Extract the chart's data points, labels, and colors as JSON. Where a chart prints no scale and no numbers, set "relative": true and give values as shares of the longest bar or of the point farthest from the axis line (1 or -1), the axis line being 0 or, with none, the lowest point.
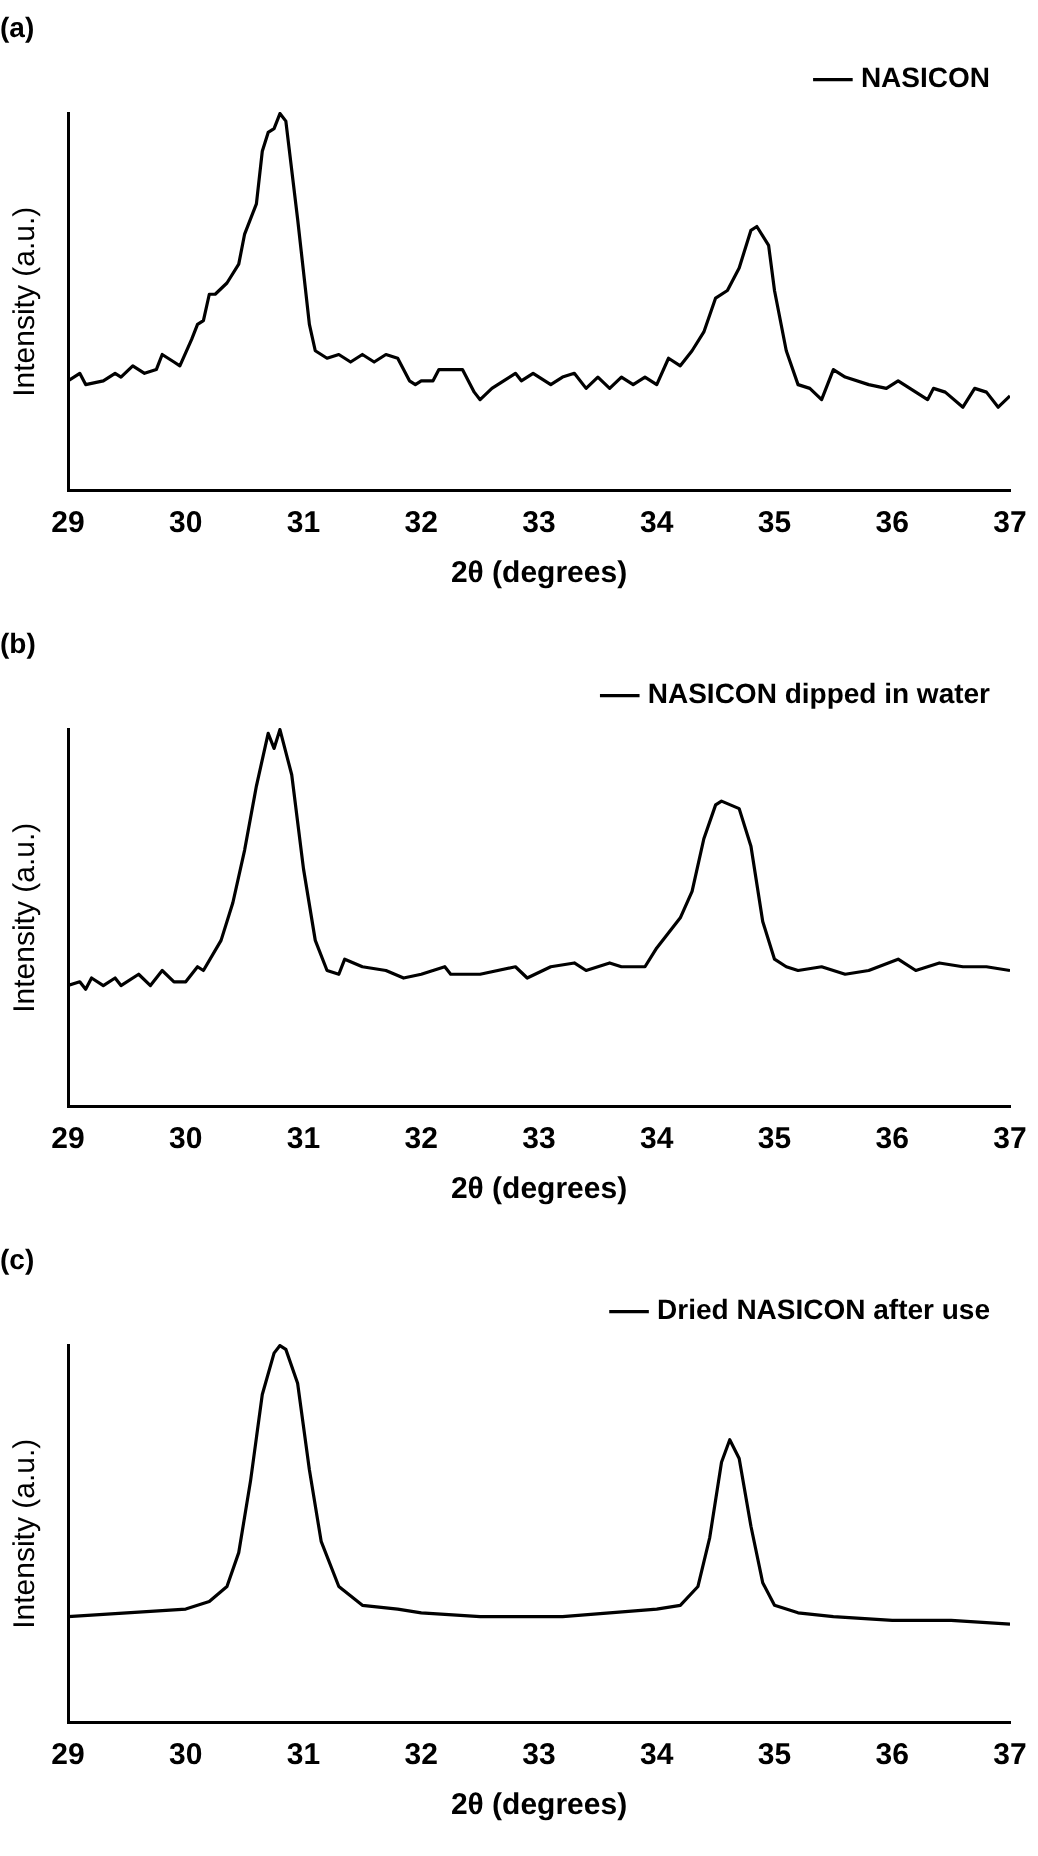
{
  "chart_data": [
    {
      "type": "line",
      "title": "(a)",
      "xlabel": "2θ (degrees)",
      "ylabel": "Intensity (a.u.)",
      "relative": true,
      "xlim": [
        29,
        37
      ],
      "xticks": [
        29,
        30,
        31,
        32,
        33,
        34,
        35,
        36,
        37
      ],
      "grid": false,
      "legend": "top right",
      "marker": "none",
      "line_style": "solid",
      "series": [
        {
          "name": "NASICON",
          "color": "#000000",
          "x": [
            29.0,
            29.1,
            29.15,
            29.3,
            29.4,
            29.45,
            29.55,
            29.65,
            29.75,
            29.8,
            29.9,
            29.95,
            30.05,
            30.1,
            30.15,
            30.2,
            30.25,
            30.35,
            30.45,
            30.5,
            30.6,
            30.65,
            30.7,
            30.75,
            30.8,
            30.85,
            30.95,
            31.05,
            31.1,
            31.2,
            31.3,
            31.4,
            31.5,
            31.6,
            31.7,
            31.8,
            31.9,
            31.95,
            32.0,
            32.1,
            32.15,
            32.3,
            32.35,
            32.45,
            32.5,
            32.6,
            32.7,
            32.8,
            32.85,
            32.95,
            33.1,
            33.2,
            33.3,
            33.4,
            33.5,
            33.6,
            33.7,
            33.8,
            33.9,
            34.0,
            34.1,
            34.2,
            34.3,
            34.4,
            34.5,
            34.6,
            34.7,
            34.8,
            34.85,
            34.95,
            35.0,
            35.1,
            35.2,
            35.3,
            35.4,
            35.5,
            35.6,
            35.8,
            35.95,
            36.05,
            36.2,
            36.3,
            36.35,
            36.45,
            36.6,
            36.7,
            36.8,
            36.9,
            37.0
          ],
          "values": [
            0.29,
            0.31,
            0.28,
            0.29,
            0.31,
            0.3,
            0.33,
            0.31,
            0.32,
            0.36,
            0.34,
            0.33,
            0.4,
            0.44,
            0.45,
            0.52,
            0.52,
            0.55,
            0.6,
            0.68,
            0.76,
            0.9,
            0.95,
            0.96,
            1.0,
            0.98,
            0.72,
            0.44,
            0.37,
            0.35,
            0.36,
            0.34,
            0.36,
            0.34,
            0.36,
            0.35,
            0.29,
            0.28,
            0.29,
            0.29,
            0.32,
            0.32,
            0.32,
            0.26,
            0.24,
            0.27,
            0.29,
            0.31,
            0.29,
            0.31,
            0.28,
            0.3,
            0.31,
            0.27,
            0.3,
            0.27,
            0.3,
            0.28,
            0.3,
            0.28,
            0.35,
            0.33,
            0.37,
            0.42,
            0.51,
            0.53,
            0.59,
            0.69,
            0.7,
            0.65,
            0.53,
            0.37,
            0.28,
            0.27,
            0.24,
            0.32,
            0.3,
            0.28,
            0.27,
            0.29,
            0.26,
            0.24,
            0.27,
            0.26,
            0.22,
            0.27,
            0.26,
            0.22,
            0.25
          ]
        }
      ]
    },
    {
      "type": "line",
      "title": "(b)",
      "xlabel": "2θ (degrees)",
      "ylabel": "Intensity (a.u.)",
      "relative": true,
      "xlim": [
        29,
        37
      ],
      "xticks": [
        29,
        30,
        31,
        32,
        33,
        34,
        35,
        36,
        37
      ],
      "grid": false,
      "legend": "top right",
      "marker": "none",
      "line_style": "solid",
      "series": [
        {
          "name": "NASICON dipped in water",
          "color": "#000000",
          "x": [
            29.0,
            29.1,
            29.15,
            29.2,
            29.3,
            29.4,
            29.45,
            29.6,
            29.7,
            29.8,
            29.9,
            30.0,
            30.1,
            30.15,
            30.3,
            30.4,
            30.5,
            30.6,
            30.7,
            30.75,
            30.8,
            30.9,
            31.0,
            31.1,
            31.2,
            31.3,
            31.35,
            31.5,
            31.7,
            31.85,
            32.0,
            32.2,
            32.25,
            32.5,
            32.8,
            32.9,
            33.1,
            33.3,
            33.4,
            33.6,
            33.7,
            33.9,
            34.0,
            34.2,
            34.3,
            34.4,
            34.5,
            34.55,
            34.7,
            34.8,
            34.9,
            35.0,
            35.1,
            35.2,
            35.4,
            35.6,
            35.8,
            36.05,
            36.2,
            36.4,
            36.6,
            36.8,
            37.0
          ],
          "values": [
            0.32,
            0.33,
            0.31,
            0.34,
            0.32,
            0.34,
            0.32,
            0.35,
            0.32,
            0.36,
            0.33,
            0.33,
            0.37,
            0.36,
            0.44,
            0.54,
            0.68,
            0.85,
            0.99,
            0.95,
            1.0,
            0.88,
            0.63,
            0.44,
            0.36,
            0.35,
            0.39,
            0.37,
            0.36,
            0.34,
            0.35,
            0.37,
            0.35,
            0.35,
            0.37,
            0.34,
            0.37,
            0.38,
            0.36,
            0.38,
            0.37,
            0.37,
            0.42,
            0.5,
            0.57,
            0.71,
            0.8,
            0.81,
            0.79,
            0.69,
            0.49,
            0.39,
            0.37,
            0.36,
            0.37,
            0.35,
            0.36,
            0.39,
            0.36,
            0.38,
            0.37,
            0.37,
            0.36
          ]
        }
      ]
    },
    {
      "type": "line",
      "title": "(c)",
      "xlabel": "2θ (degrees)",
      "ylabel": "Intensity (a.u.)",
      "relative": true,
      "xlim": [
        29,
        37
      ],
      "xticks": [
        29,
        30,
        31,
        32,
        33,
        34,
        35,
        36,
        37
      ],
      "grid": false,
      "legend": "top right",
      "marker": "none",
      "line_style": "solid",
      "series": [
        {
          "name": "Dried NASICON after use",
          "color": "#000000",
          "x": [
            29.0,
            29.5,
            30.0,
            30.2,
            30.35,
            30.45,
            30.55,
            30.65,
            30.75,
            30.8,
            30.85,
            30.95,
            31.05,
            31.15,
            31.3,
            31.5,
            31.8,
            32.0,
            32.5,
            32.8,
            32.9,
            33.2,
            33.6,
            34.0,
            34.2,
            34.35,
            34.45,
            34.55,
            34.62,
            34.7,
            34.8,
            34.9,
            35.0,
            35.2,
            35.5,
            36.0,
            36.5,
            37.0
          ],
          "values": [
            0.28,
            0.29,
            0.3,
            0.32,
            0.36,
            0.45,
            0.64,
            0.87,
            0.98,
            1.0,
            0.99,
            0.9,
            0.67,
            0.48,
            0.36,
            0.31,
            0.3,
            0.29,
            0.28,
            0.28,
            0.28,
            0.28,
            0.29,
            0.3,
            0.31,
            0.36,
            0.49,
            0.69,
            0.75,
            0.7,
            0.52,
            0.37,
            0.31,
            0.29,
            0.28,
            0.27,
            0.27,
            0.26
          ]
        }
      ]
    }
  ]
}
